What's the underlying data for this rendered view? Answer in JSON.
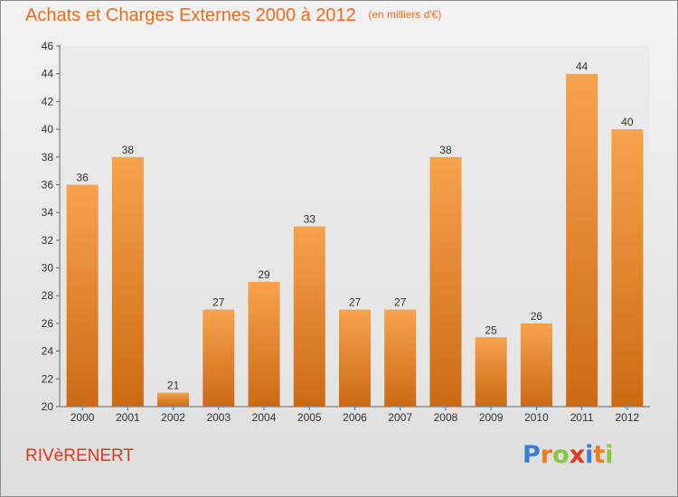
{
  "chart_data": {
    "type": "bar",
    "title": "Achats et Charges Externes 2000 à 2012",
    "subtitle": "(en milliers d'€)",
    "categories": [
      "2000",
      "2001",
      "2002",
      "2003",
      "2004",
      "2005",
      "2006",
      "2007",
      "2008",
      "2009",
      "2010",
      "2011",
      "2012"
    ],
    "values": [
      36,
      38,
      21,
      27,
      29,
      33,
      27,
      27,
      38,
      25,
      26,
      44,
      40
    ],
    "xlabel": "",
    "ylabel": "",
    "ylim": [
      20,
      46
    ],
    "yticks": [
      20,
      22,
      24,
      26,
      28,
      30,
      32,
      34,
      36,
      38,
      40,
      42,
      44,
      46
    ],
    "grid": false,
    "legend": "none",
    "bar_color": "#f28e30"
  },
  "commune": "RIVèRENERT",
  "logo": {
    "text": "Proxiti",
    "letters": [
      {
        "ch": "P",
        "color": "#3a7fd4"
      },
      {
        "ch": "r",
        "color": "#f07d1a"
      },
      {
        "ch": "o",
        "color": "#8cc63e"
      },
      {
        "ch": "x",
        "color": "#e8361b"
      },
      {
        "ch": "i",
        "color": "#3a7fd4"
      },
      {
        "ch": "t",
        "color": "#f07d1a"
      },
      {
        "ch": "i",
        "color": "#8cc63e"
      }
    ]
  }
}
